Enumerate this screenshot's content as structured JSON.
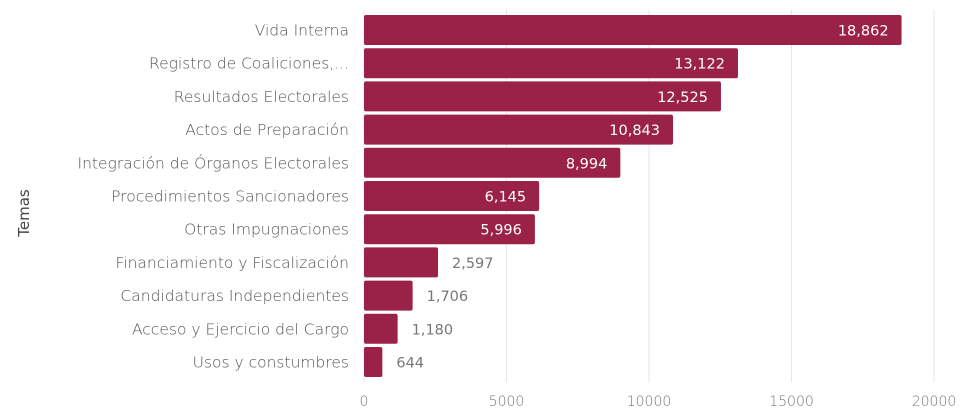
{
  "chart_data": {
    "type": "bar",
    "orientation": "horizontal",
    "ylabel": "Temas",
    "xlabel": "",
    "xlim": [
      0,
      20000
    ],
    "x_ticks": [
      0,
      5000,
      10000,
      15000,
      20000
    ],
    "x_tick_labels": [
      "0",
      "5000",
      "10000",
      "15000",
      "20000"
    ],
    "grid": true,
    "bar_color": "#9b2247",
    "categories": [
      "Vida Interna",
      "Registro de Coaliciones,...",
      "Resultados Electorales",
      "Actos de Preparación",
      "Integración de Órganos Electorales",
      "Procedimientos Sancionadores",
      "Otras Impugnaciones",
      "Financiamiento y Fiscalización",
      "Candidaturas Independientes",
      "Acceso y Ejercicio del Cargo",
      "Usos y constumbres"
    ],
    "values": [
      18862,
      13122,
      12525,
      10843,
      8994,
      6145,
      5996,
      2597,
      1706,
      1180,
      644
    ],
    "value_labels": [
      "18,862",
      "13,122",
      "12,525",
      "10,843",
      "8,994",
      "6,145",
      "5,996",
      "2,597",
      "1,706",
      "1,180",
      "644"
    ]
  }
}
